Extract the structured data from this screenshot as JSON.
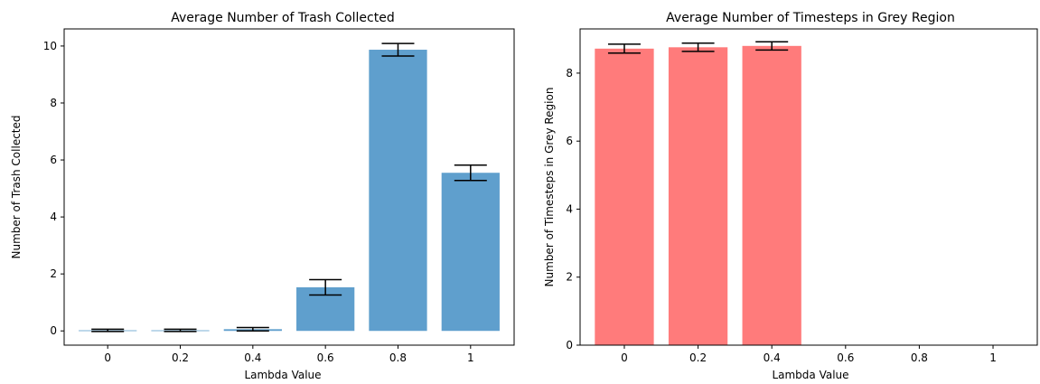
{
  "chart_data": [
    {
      "type": "bar",
      "title": "Average Number of Trash Collected",
      "xlabel": "Lambda Value",
      "ylabel": "Number of Trash Collected",
      "categories": [
        "0",
        "0.2",
        "0.4",
        "0.6",
        "0.8",
        "1"
      ],
      "values": [
        0.02,
        0.02,
        0.06,
        1.53,
        9.87,
        5.55
      ],
      "errors": [
        0.04,
        0.04,
        0.06,
        0.27,
        0.22,
        0.27
      ],
      "ylim": [
        -0.5,
        10.6
      ],
      "yticks": [
        0,
        2,
        4,
        6,
        8,
        10
      ],
      "bar_color": "#5f9fcd",
      "grid": false
    },
    {
      "type": "bar",
      "title": "Average Number of Timesteps in Grey Region",
      "xlabel": "Lambda Value",
      "ylabel": "Number of Timesteps in Grey Region",
      "categories": [
        "0",
        "0.2",
        "0.4",
        "0.6",
        "0.8",
        "1"
      ],
      "values": [
        8.72,
        8.76,
        8.8,
        null,
        null,
        null
      ],
      "errors": [
        0.13,
        0.12,
        0.12,
        null,
        null,
        null
      ],
      "ylim": [
        0,
        9.3
      ],
      "yticks": [
        0,
        2,
        4,
        6,
        8
      ],
      "bar_color": "#ff7b7b",
      "grid": false
    }
  ]
}
